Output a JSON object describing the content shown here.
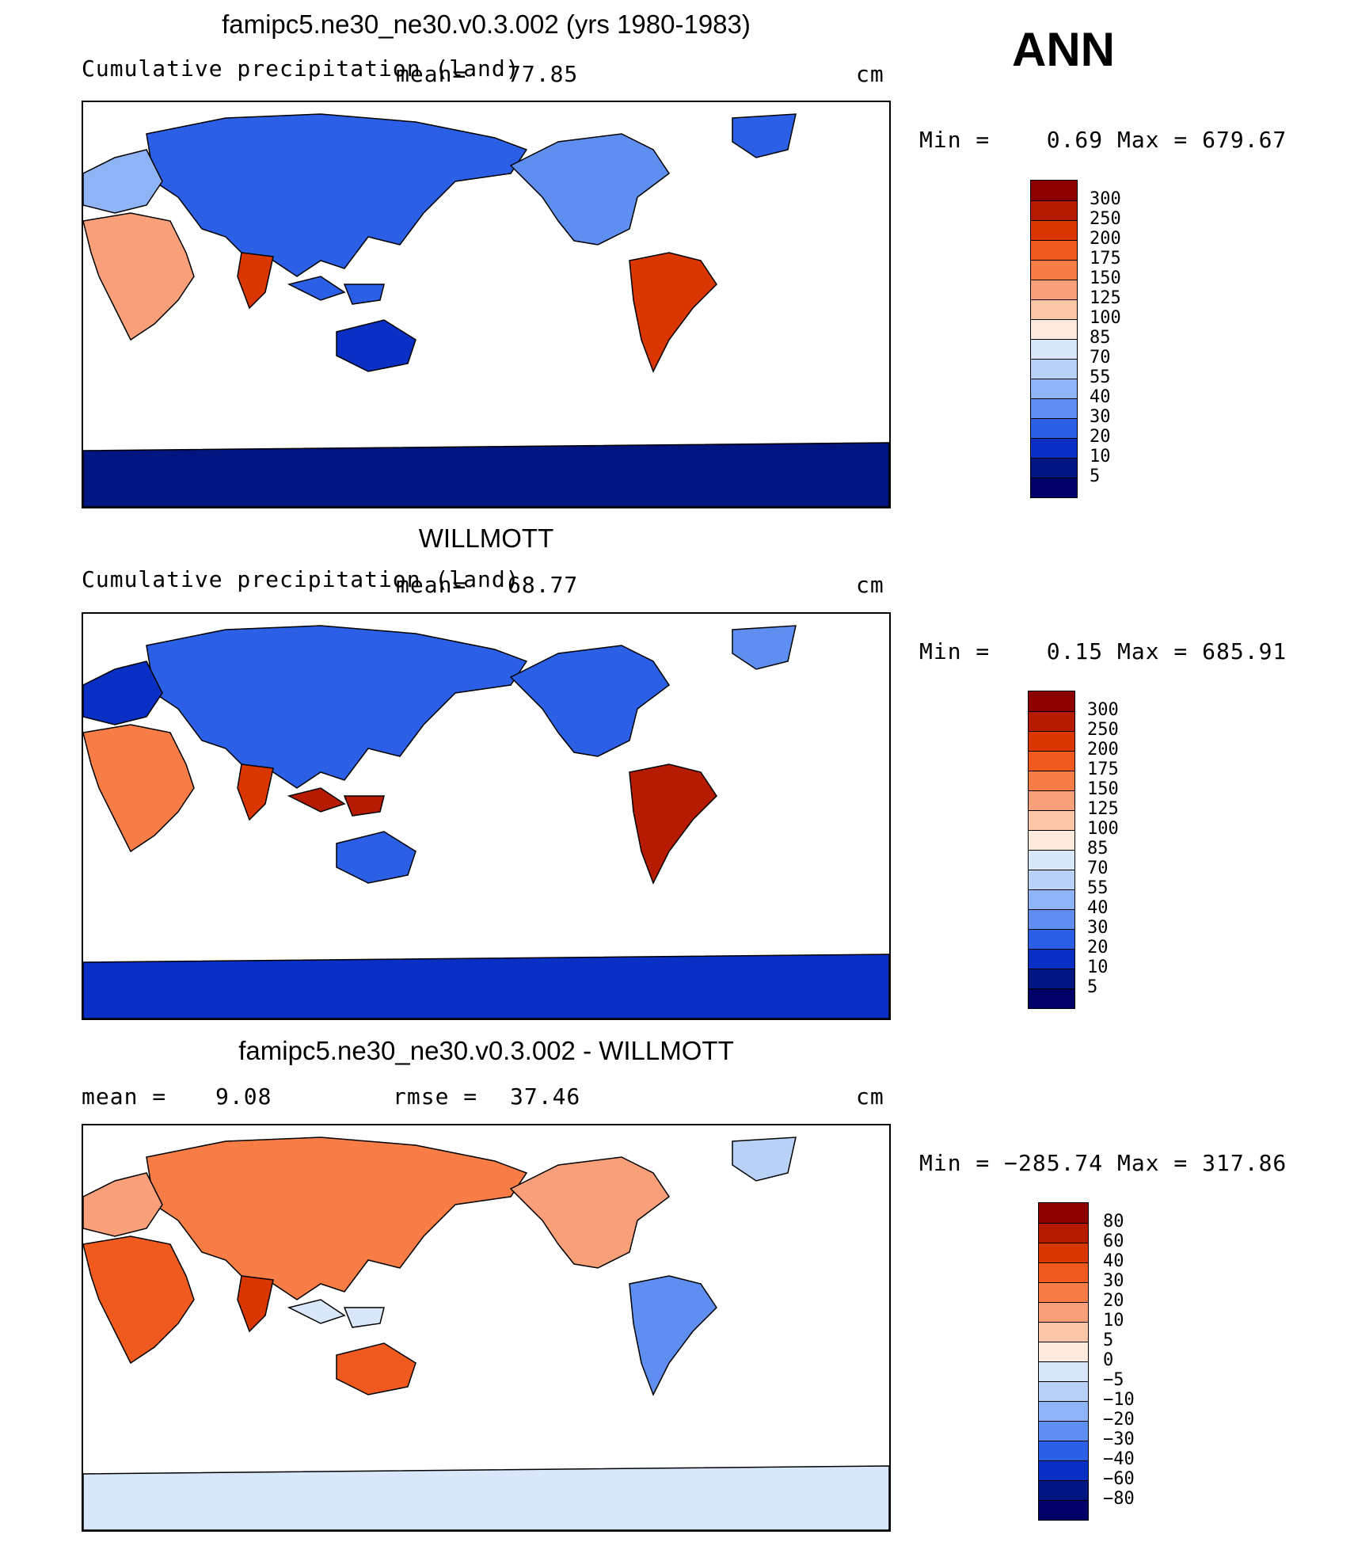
{
  "season": "ANN",
  "panels": [
    {
      "title": "famipc5.ne30_ne30.v0.3.002 (yrs 1980-1983)",
      "variable": "Cumulative precipitation (land)",
      "mean_label": "mean=",
      "mean_value": "77.85",
      "units": "cm",
      "min_max_label": "Min =    0.69 Max = 679.67",
      "colorbar": {
        "labels": [
          "300",
          "250",
          "200",
          "175",
          "150",
          "125",
          "100",
          "85",
          "70",
          "55",
          "40",
          "30",
          "20",
          "10",
          "5"
        ],
        "colors": [
          "#8b0000",
          "#b61a00",
          "#d93600",
          "#f05a1e",
          "#f77c45",
          "#f9a07a",
          "#fbc6a8",
          "#feeadc",
          "#d8e8fa",
          "#b7d1f7",
          "#8fb4f5",
          "#5e8ff0",
          "#2b5fe6",
          "#0a2fc4",
          "#001580",
          "#000066"
        ]
      }
    },
    {
      "title": "WILLMOTT",
      "variable": "Cumulative precipitation (land)",
      "mean_label": "mean=",
      "mean_value": "68.77",
      "units": "cm",
      "min_max_label": "Min =    0.15 Max = 685.91",
      "colorbar": {
        "labels": [
          "300",
          "250",
          "200",
          "175",
          "150",
          "125",
          "100",
          "85",
          "70",
          "55",
          "40",
          "30",
          "20",
          "10",
          "5"
        ],
        "colors": [
          "#8b0000",
          "#b61a00",
          "#d93600",
          "#f05a1e",
          "#f77c45",
          "#f9a07a",
          "#fbc6a8",
          "#feeadc",
          "#d8e8fa",
          "#b7d1f7",
          "#8fb4f5",
          "#5e8ff0",
          "#2b5fe6",
          "#0a2fc4",
          "#001580",
          "#000066"
        ]
      }
    },
    {
      "title": "famipc5.ne30_ne30.v0.3.002 - WILLMOTT",
      "mean_label": "mean =",
      "mean_value": "9.08",
      "rmse_label": "rmse =",
      "rmse_value": "37.46",
      "units": "cm",
      "min_max_label": "Min = −285.74 Max = 317.86",
      "colorbar": {
        "labels": [
          "80",
          "60",
          "40",
          "30",
          "20",
          "10",
          "5",
          "0",
          "−5",
          "−10",
          "−20",
          "−30",
          "−40",
          "−60",
          "−80"
        ],
        "colors": [
          "#8b0000",
          "#b61a00",
          "#d93600",
          "#f05a1e",
          "#f77c45",
          "#f9a07a",
          "#fbc6a8",
          "#feeadc",
          "#d8e8fa",
          "#b7d1f7",
          "#8fb4f5",
          "#5e8ff0",
          "#2b5fe6",
          "#0a2fc4",
          "#001580",
          "#000066"
        ]
      }
    }
  ]
}
